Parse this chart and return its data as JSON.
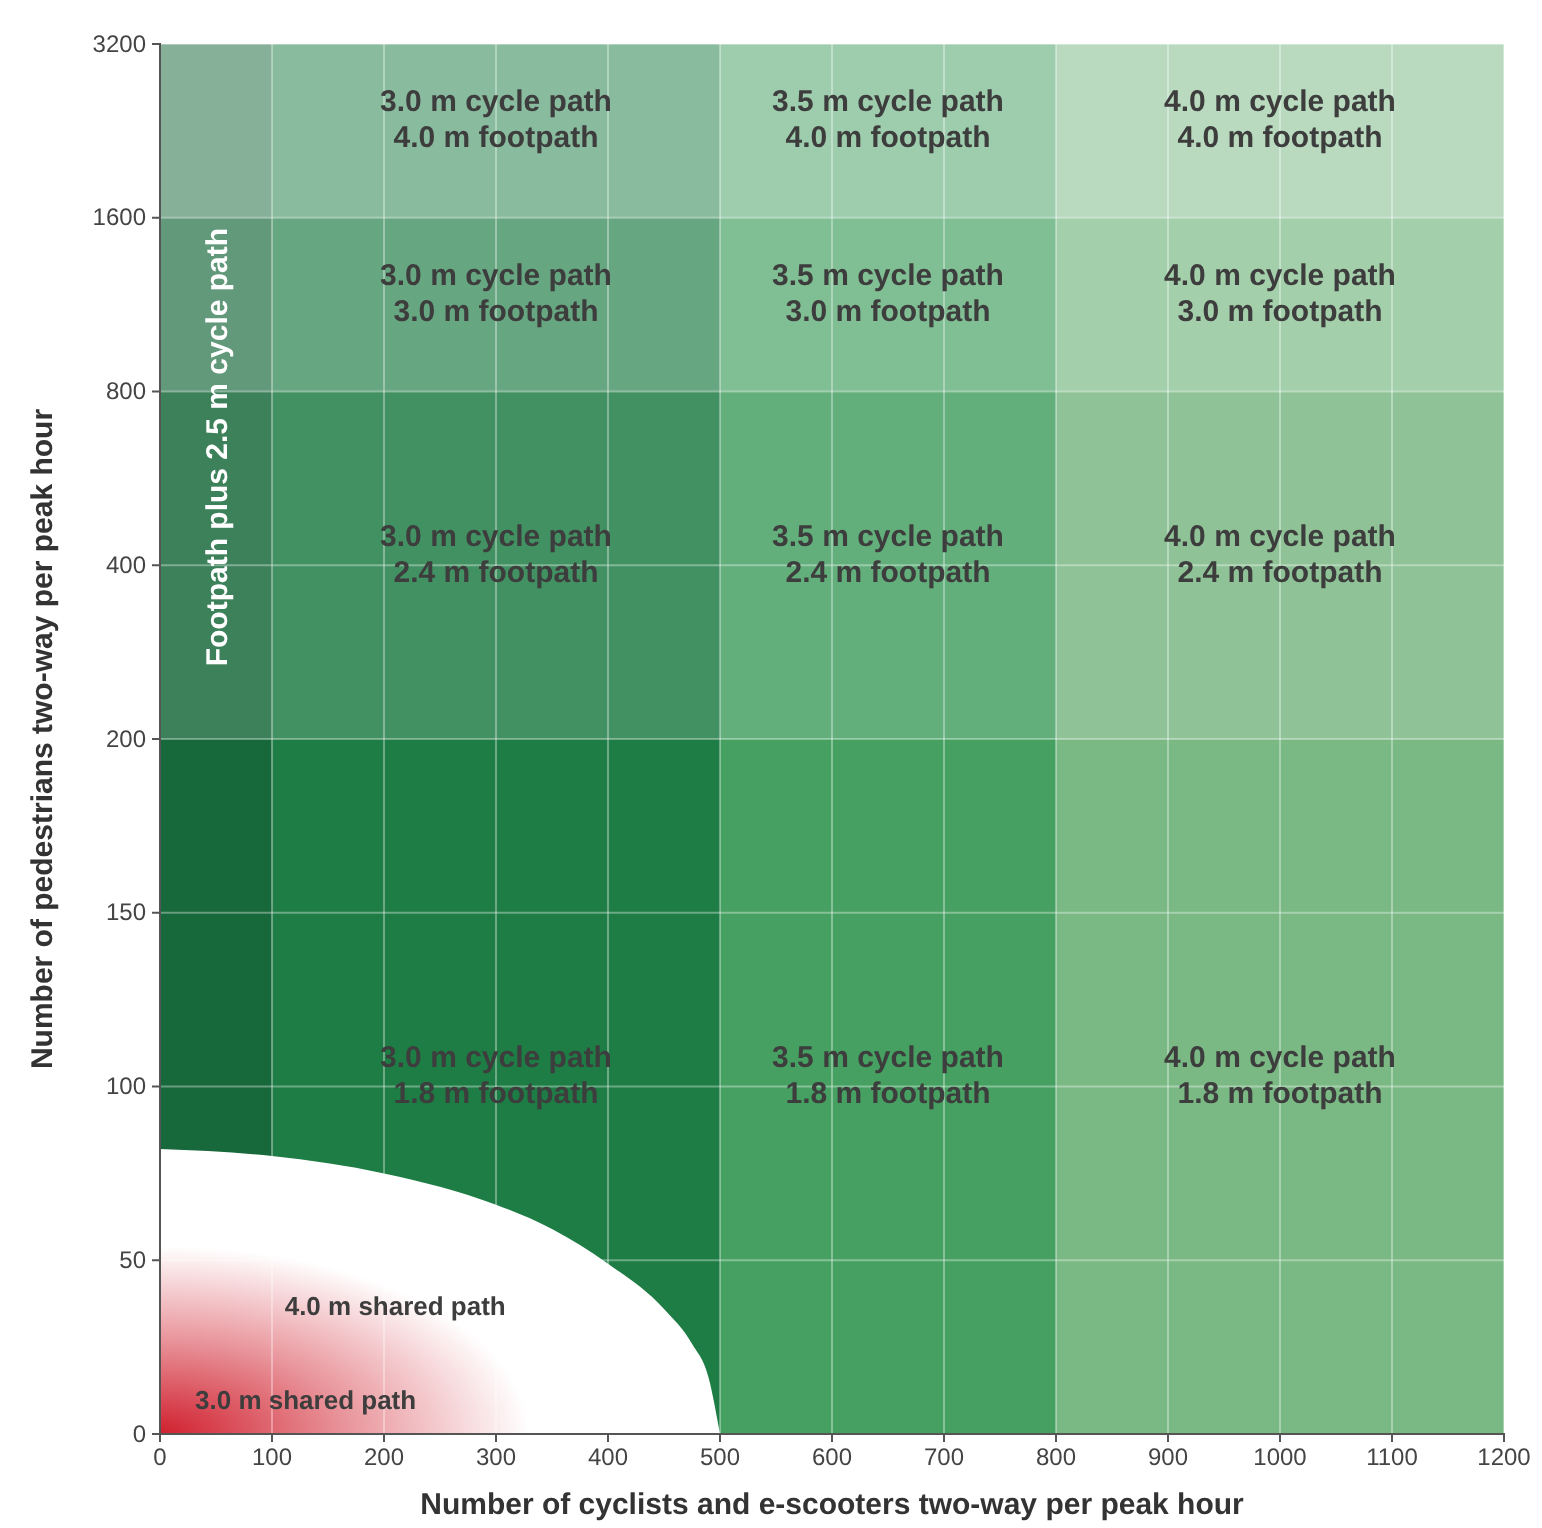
{
  "chart_data": [
    {
      "type": "area",
      "ylabel": "Number of pedestrians two-way per peak hour",
      "xlim": [
        0,
        1200
      ],
      "xticks": [
        0,
        100,
        200,
        300,
        400,
        500,
        600,
        700,
        800,
        900,
        1000,
        1100,
        1200
      ],
      "ylim": [
        200,
        3200
      ],
      "yticks": [
        400,
        800,
        1600,
        3200
      ],
      "log": "y",
      "tick_labels": "y",
      "grid": true,
      "bands": [
        {
          "axis": "x",
          "from": 0,
          "to": 100,
          "color": "#17693b"
        },
        {
          "axis": "x",
          "from": 100,
          "to": 500,
          "color": "#1e7d45"
        },
        {
          "axis": "x",
          "from": 500,
          "to": 800,
          "color": "#45a062"
        },
        {
          "axis": "x",
          "from": 800,
          "to": 1200,
          "color": "#7ab884"
        },
        {
          "axis": "y",
          "from": 200,
          "to": 800,
          "color": "#ffffff"
        },
        {
          "axis": "y",
          "from": 800,
          "to": 1600,
          "color": "#ffffff"
        },
        {
          "axis": "y",
          "from": 1600,
          "to": 3200,
          "color": "#ffffff"
        }
      ],
      "annotations": [
        "Footpath plus 2.5 m cycle path",
        "3.0 m cycle path\n4.0 m footpath",
        "3.5 m cycle path\n4.0 m footpath",
        "4.0 m cycle path\n4.0 m footpath",
        "3.0 m cycle path\n3.0 m footpath",
        "3.5 m cycle path\n3.0 m footpath",
        "4.0 m cycle path\n3.0 m footpath",
        "3.0 m cycle path\n2.4 m footpath",
        "3.5 m cycle path\n2.4 m footpath",
        "4.0 m cycle path\n2.4 m footpath"
      ]
    },
    {
      "type": "area",
      "xlabel": "Number of cyclists and e-scooters two-way per peak hour",
      "xlim": [
        0,
        1200
      ],
      "xticks": [
        0,
        100,
        200,
        300,
        400,
        500,
        600,
        700,
        800,
        900,
        1000,
        1100,
        1200
      ],
      "ylim": [
        0,
        200
      ],
      "yticks": [
        0,
        50,
        100,
        150,
        200
      ],
      "grid": true,
      "series": [
        {
          "color": "#ffffff",
          "x": [
            0,
            100,
            200,
            300,
            350,
            400,
            450,
            475,
            490,
            500
          ],
          "values": [
            82,
            80,
            75,
            66,
            59,
            49,
            36,
            26,
            16,
            0
          ]
        }
      ],
      "bands": [
        {
          "axis": "x",
          "from": 0,
          "to": 100,
          "color": "#17693b"
        },
        {
          "axis": "x",
          "from": 100,
          "to": 500,
          "color": "#1e7d45"
        },
        {
          "axis": "x",
          "from": 500,
          "to": 800,
          "color": "#45a062"
        },
        {
          "axis": "x",
          "from": 800,
          "to": 1200,
          "color": "#7ab884"
        }
      ],
      "annotations": [
        "3.0 m cycle path\n1.8 m footpath",
        "3.5 m cycle path\n1.8 m footpath",
        "4.0 m cycle path\n1.8 m footpath",
        "4.0 m shared path",
        "3.0 m shared path"
      ]
    }
  ]
}
